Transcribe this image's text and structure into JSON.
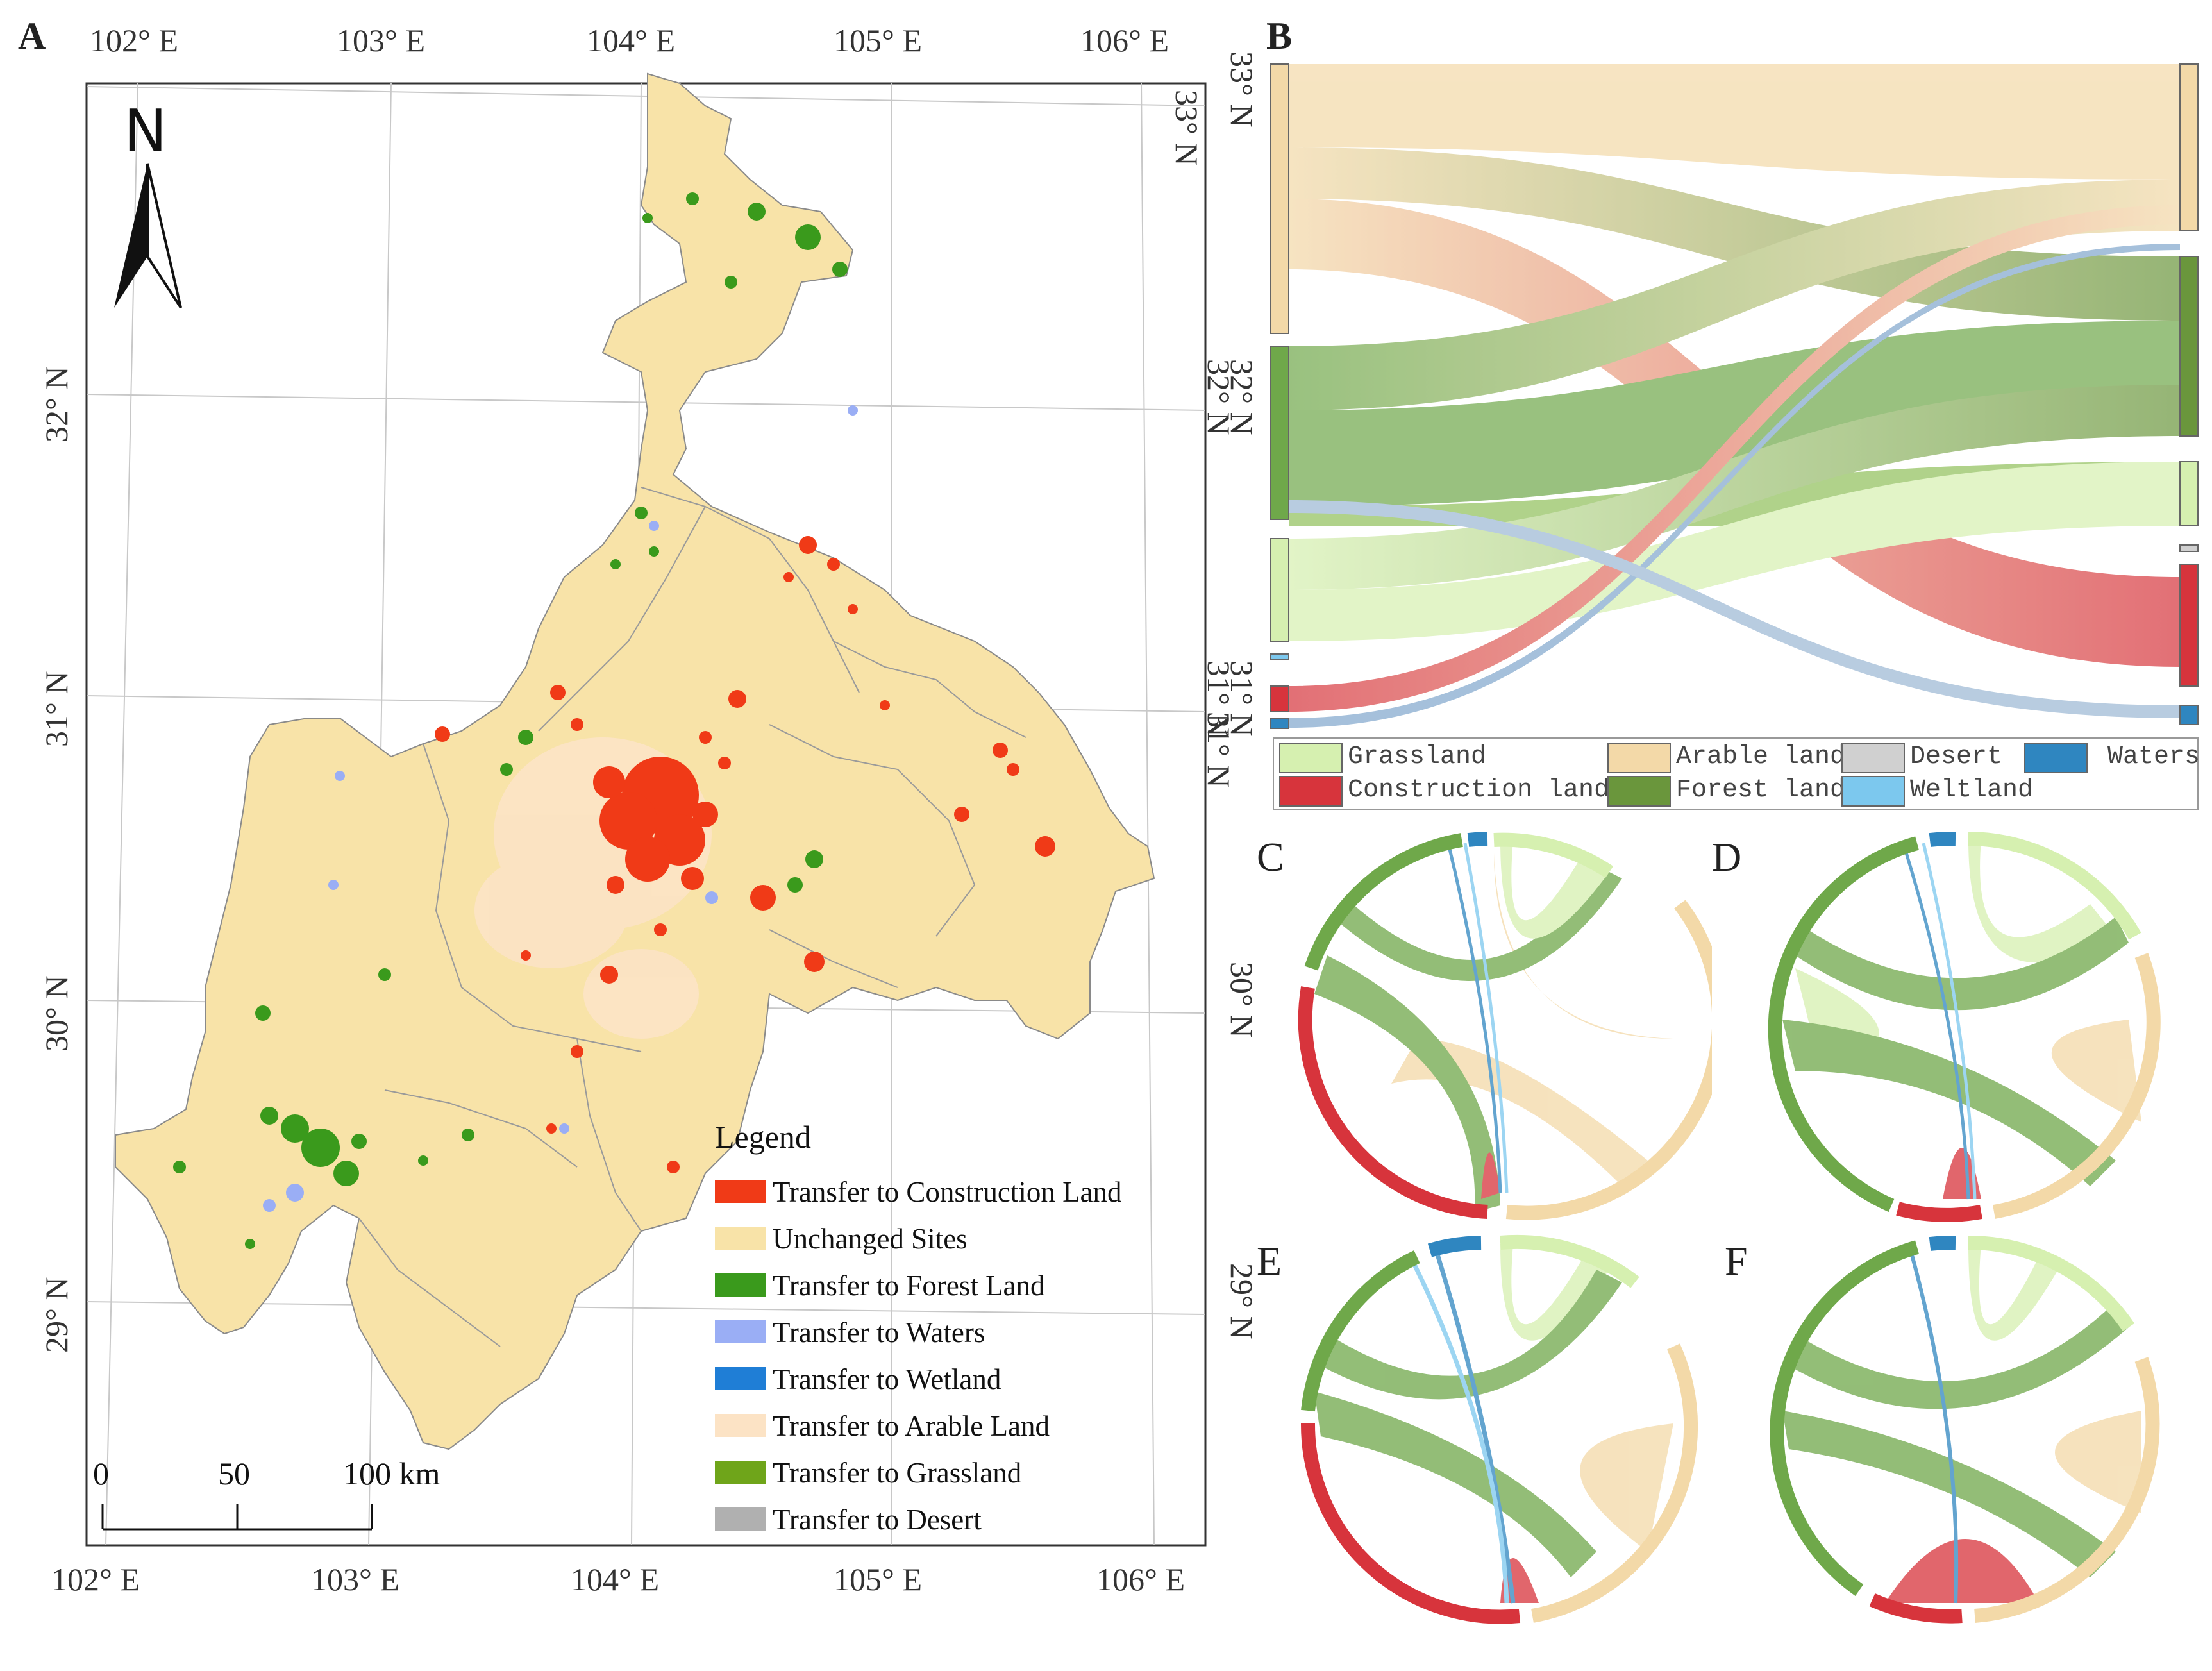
{
  "panels": {
    "a": "A",
    "b": "B",
    "c": "C",
    "d": "D",
    "e": "E",
    "f": "F"
  },
  "map": {
    "north_arrow": "N",
    "top_lon_labels": [
      "102° E",
      "103° E",
      "104° E",
      "105° E",
      "106° E"
    ],
    "bottom_lon_labels": [
      "102° E",
      "103° E",
      "104° E",
      "105° E",
      "106° E"
    ],
    "left_lat_labels": [
      "32° N",
      "31° N",
      "30° N",
      "29° N"
    ],
    "right_lat_labels": [
      "33° N",
      "32° N",
      "31° N",
      "30° N",
      "29° N"
    ],
    "scale_bar": {
      "zero": "0",
      "mid": "50",
      "end": "100 km"
    },
    "legend": {
      "title": "Legend",
      "items": [
        {
          "label": "Transfer to Construction Land",
          "color": "#f03a17"
        },
        {
          "label": "Unchanged Sites",
          "color": "#f8e3a8"
        },
        {
          "label": "Transfer to Forest Land",
          "color": "#3a9a1c"
        },
        {
          "label": "Transfer to Waters",
          "color": "#9aaef5"
        },
        {
          "label": "Transfer to Wetland",
          "color": "#1f7ed6"
        },
        {
          "label": "Transfer to Arable Land",
          "color": "#fce3c5"
        },
        {
          "label": "Transfer to Grassland",
          "color": "#6fa51a"
        },
        {
          "label": "Transfer to Desert",
          "color": "#b0b0b0"
        }
      ]
    }
  },
  "sankey": {
    "left_lat_labels": [
      "33° N",
      "32° N",
      "31° N",
      "31° N"
    ],
    "legend": [
      {
        "label": "Grassland",
        "color": "#d6f0b0"
      },
      {
        "label": "Arable land",
        "color": "#f3d9a8"
      },
      {
        "label": "Desert",
        "color": "#d0d0d0"
      },
      {
        "label": "Waters",
        "color": "#2f86c0"
      },
      {
        "label": "Construction land",
        "color": "#d7343c"
      },
      {
        "label": "Forest land",
        "color": "#6a963c"
      },
      {
        "label": "Weltland",
        "color": "#7cc8ee"
      }
    ]
  },
  "colors": {
    "arable": "#f3d9a8",
    "forest": "#6fa84a",
    "grass": "#d6f0b0",
    "construction": "#d7343c",
    "waters": "#2f86c0",
    "wetland": "#7cc8ee",
    "desert": "#d0d0d0"
  }
}
